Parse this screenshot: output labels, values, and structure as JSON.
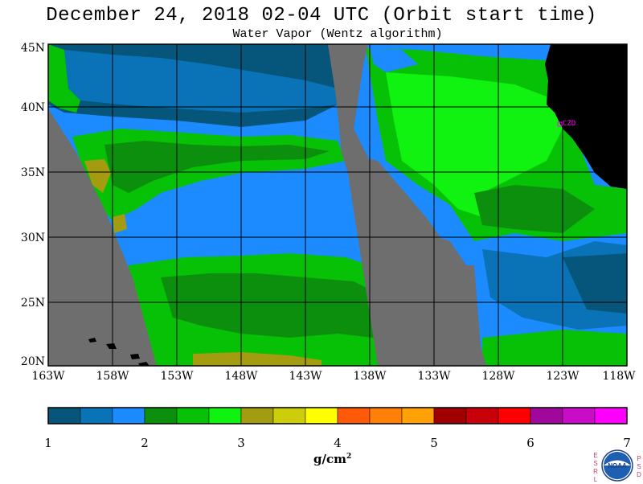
{
  "title": "December 24, 2018  02-04 UTC  (Orbit start time)",
  "subtitle": "Water Vapor (Wentz algorithm)",
  "map": {
    "lat_labels": [
      "45N",
      "40N",
      "35N",
      "30N",
      "25N",
      "20N"
    ],
    "lon_labels": [
      "163W",
      "158W",
      "153W",
      "148W",
      "143W",
      "138W",
      "133W",
      "128W",
      "123W",
      "118W"
    ],
    "station_label": "CZD",
    "colors": {
      "no_data": "#6e6e6e",
      "land": "#000000",
      "station": "#ff00ff",
      "grid": "#000000"
    }
  },
  "colorbar": {
    "ticks": [
      "1",
      "2",
      "3",
      "4",
      "5",
      "6",
      "7"
    ],
    "units": "g/cm",
    "units_sup": "2",
    "colors": [
      "#06557a",
      "#0a73b8",
      "#1b8bff",
      "#0c8f0c",
      "#07c107",
      "#10f210",
      "#a39c10",
      "#cdcd0c",
      "#ffff00",
      "#ff5a0a",
      "#ff7f07",
      "#ffa107",
      "#a00000",
      "#c8000a",
      "#ff0000",
      "#a0079b",
      "#c80cc8",
      "#ff00ff"
    ]
  },
  "logo": {
    "left_letters": [
      "E",
      "S",
      "R",
      "L"
    ],
    "right_letters": [
      "P",
      "S",
      "D"
    ],
    "text": "NOAA"
  }
}
